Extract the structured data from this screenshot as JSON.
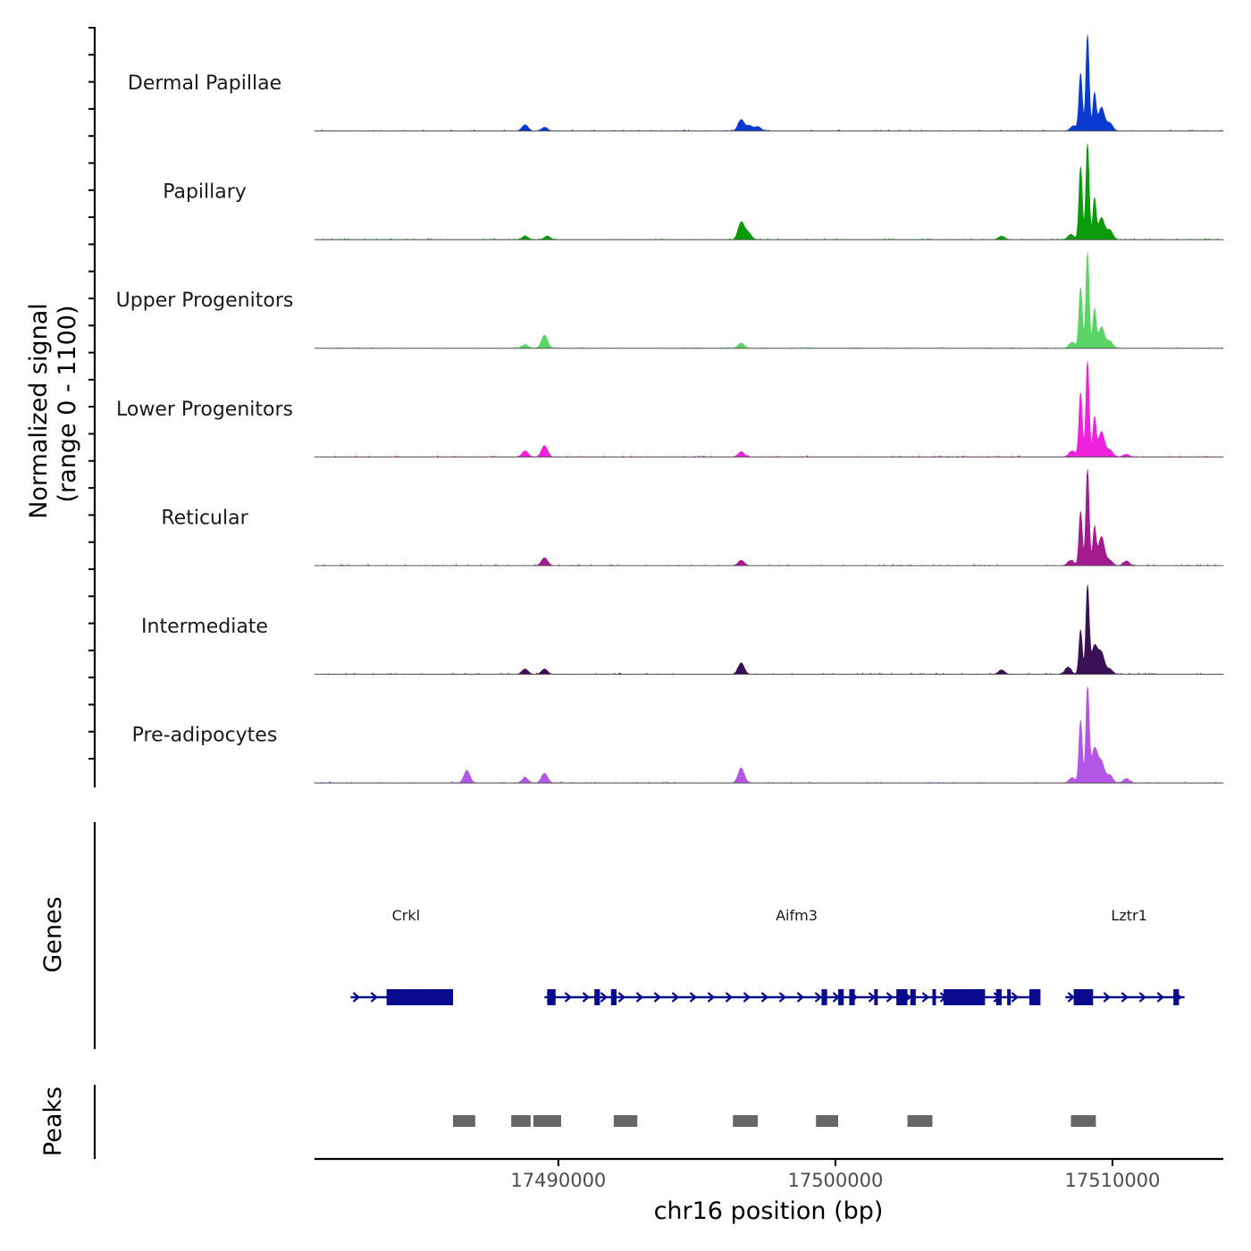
{
  "chart_data": {
    "type": "area",
    "title": "",
    "chromosome": "chr16",
    "xlabel": "chr16 position (bp)",
    "ylabel": [
      "Normalized signal",
      "(range 0 - 1100)"
    ],
    "ylim": [
      0,
      1100
    ],
    "xlim": [
      17481200,
      17514000
    ],
    "x_ticks": [
      17490000,
      17500000,
      17510000
    ],
    "x_tick_labels": [
      "17490000",
      "17500000",
      "17510000"
    ],
    "tracks": [
      {
        "name": "Dermal Papillae",
        "color": "#0b3ad1",
        "peaks": [
          [
            17488800,
            70
          ],
          [
            17489500,
            40
          ],
          [
            17496600,
            130
          ],
          [
            17496900,
            60
          ],
          [
            17497200,
            50
          ],
          [
            17508600,
            60
          ],
          [
            17508850,
            660
          ],
          [
            17509100,
            1100
          ],
          [
            17509350,
            420
          ],
          [
            17509600,
            270
          ],
          [
            17509900,
            90
          ]
        ]
      },
      {
        "name": "Papillary",
        "color": "#0a9a0a",
        "peaks": [
          [
            17488800,
            40
          ],
          [
            17489600,
            40
          ],
          [
            17496600,
            200
          ],
          [
            17496850,
            80
          ],
          [
            17508500,
            60
          ],
          [
            17508850,
            840
          ],
          [
            17509100,
            1100
          ],
          [
            17509350,
            460
          ],
          [
            17509600,
            250
          ],
          [
            17509900,
            110
          ],
          [
            17506000,
            40
          ]
        ]
      },
      {
        "name": "Upper Progenitors",
        "color": "#5bd466",
        "peaks": [
          [
            17488800,
            40
          ],
          [
            17489500,
            150
          ],
          [
            17496600,
            60
          ],
          [
            17508550,
            70
          ],
          [
            17508850,
            700
          ],
          [
            17509100,
            1100
          ],
          [
            17509350,
            440
          ],
          [
            17509600,
            240
          ],
          [
            17509900,
            80
          ]
        ]
      },
      {
        "name": "Lower Progenitors",
        "color": "#ee22dd",
        "peaks": [
          [
            17488800,
            70
          ],
          [
            17489500,
            130
          ],
          [
            17496600,
            60
          ],
          [
            17508550,
            70
          ],
          [
            17508850,
            740
          ],
          [
            17509100,
            1100
          ],
          [
            17509350,
            440
          ],
          [
            17509600,
            290
          ],
          [
            17509900,
            80
          ],
          [
            17510500,
            30
          ]
        ]
      },
      {
        "name": "Reticular",
        "color": "#a3198e",
        "peaks": [
          [
            17489500,
            90
          ],
          [
            17496600,
            60
          ],
          [
            17508500,
            60
          ],
          [
            17508850,
            620
          ],
          [
            17509100,
            1100
          ],
          [
            17509350,
            420
          ],
          [
            17509600,
            330
          ],
          [
            17509900,
            60
          ],
          [
            17510500,
            50
          ]
        ]
      },
      {
        "name": "Intermediate",
        "color": "#3a0f55",
        "peaks": [
          [
            17488800,
            60
          ],
          [
            17489500,
            60
          ],
          [
            17496600,
            130
          ],
          [
            17508400,
            80
          ],
          [
            17508850,
            510
          ],
          [
            17509100,
            1000
          ],
          [
            17509350,
            320
          ],
          [
            17509600,
            240
          ],
          [
            17509900,
            60
          ],
          [
            17506000,
            50
          ]
        ]
      },
      {
        "name": "Pre-adipocytes",
        "color": "#b356e6",
        "peaks": [
          [
            17486700,
            140
          ],
          [
            17488800,
            60
          ],
          [
            17489500,
            110
          ],
          [
            17496600,
            170
          ],
          [
            17508550,
            60
          ],
          [
            17508850,
            720
          ],
          [
            17509100,
            1100
          ],
          [
            17509350,
            390
          ],
          [
            17509600,
            230
          ],
          [
            17509900,
            90
          ],
          [
            17510500,
            50
          ]
        ]
      }
    ],
    "genes": {
      "label": "Genes",
      "color": "#0a0a8f",
      "items": [
        {
          "name": "Crkl",
          "label_x": 17484500,
          "start": 17482500,
          "end": 17486200,
          "exons": [
            [
              17483800,
              17486200
            ]
          ]
        },
        {
          "name": "Aifm3",
          "label_x": 17498600,
          "start": 17489500,
          "end": 17507400,
          "exons": [
            [
              17489600,
              17489900
            ],
            [
              17491300,
              17491500
            ],
            [
              17491900,
              17492100
            ],
            [
              17499500,
              17499700
            ],
            [
              17500100,
              17500300
            ],
            [
              17500500,
              17500700
            ],
            [
              17501400,
              17501500
            ],
            [
              17502200,
              17502600
            ],
            [
              17502700,
              17502900
            ],
            [
              17503500,
              17503600
            ],
            [
              17503900,
              17505400
            ],
            [
              17505800,
              17506000
            ],
            [
              17506200,
              17506300
            ],
            [
              17507000,
              17507400
            ]
          ]
        },
        {
          "name": "Lztr1",
          "label_x": 17510600,
          "start": 17508300,
          "end": 17512600,
          "exons": [
            [
              17508600,
              17509300
            ],
            [
              17512200,
              17512400
            ]
          ]
        }
      ]
    },
    "peaks_track": {
      "label": "Peaks",
      "color": "#666666",
      "regions": [
        [
          17486200,
          17487000
        ],
        [
          17488300,
          17489000
        ],
        [
          17489100,
          17490100
        ],
        [
          17492000,
          17492850
        ],
        [
          17496300,
          17497200
        ],
        [
          17499300,
          17500100
        ],
        [
          17502600,
          17503500
        ],
        [
          17508500,
          17509400
        ]
      ]
    }
  }
}
